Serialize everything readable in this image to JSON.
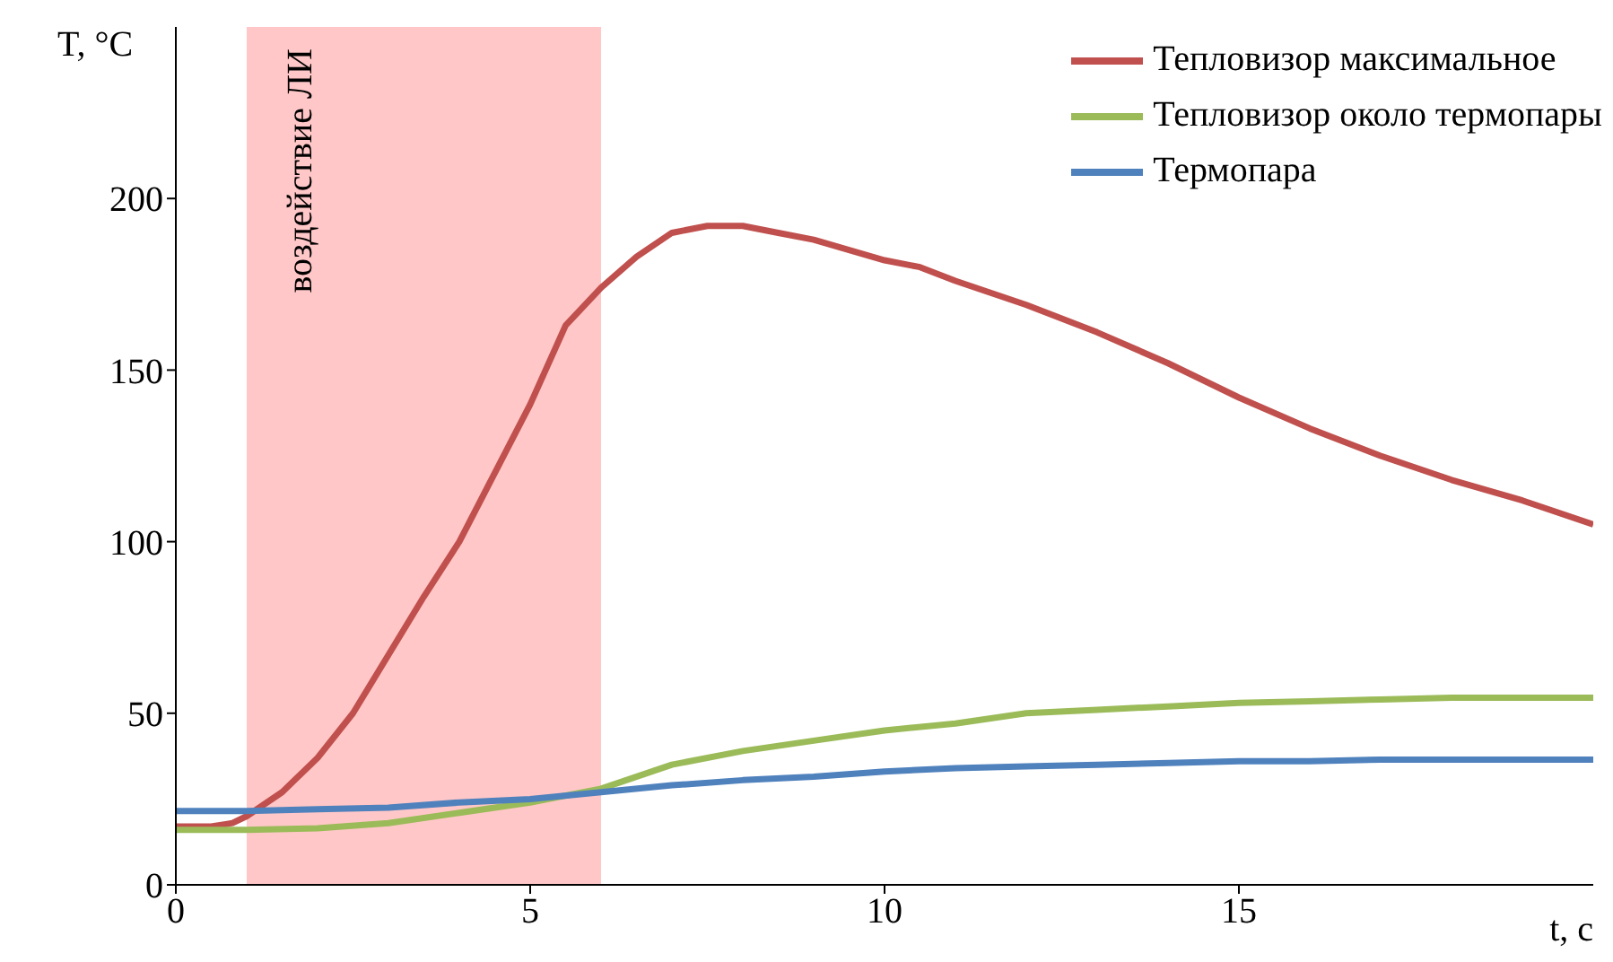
{
  "chart_data": {
    "type": "line",
    "xlabel": "t, с",
    "ylabel": "T, °C",
    "xlim": [
      0,
      20
    ],
    "xticks": [
      0,
      5,
      10,
      15
    ],
    "ylim": [
      0,
      250
    ],
    "yticks": [
      0,
      50,
      100,
      150,
      200
    ],
    "grid": false,
    "legend": "top right",
    "marker": "none",
    "line_style": "solid",
    "bands": [
      {
        "axis": "x",
        "from": 1,
        "to": 6,
        "label": "воздействие ЛИ",
        "color": "#ffc7c7"
      }
    ],
    "series": [
      {
        "name": "Тепловизор максимальное",
        "color": "#c0504d",
        "x": [
          0,
          0.5,
          0.8,
          1,
          1.5,
          2,
          2.5,
          3,
          3.5,
          4,
          4.5,
          5,
          5.5,
          6,
          6.5,
          7,
          7.5,
          8,
          8.5,
          9,
          9.5,
          10,
          10.5,
          11,
          12,
          13,
          14,
          15,
          16,
          17,
          18,
          19,
          20
        ],
        "values": [
          17,
          17,
          18,
          20,
          27,
          37,
          50,
          67,
          84,
          100,
          120,
          140,
          163,
          174,
          183,
          190,
          192,
          192,
          190,
          188,
          185,
          182,
          180,
          176,
          169,
          161,
          152,
          142,
          133,
          125,
          118,
          112,
          105
        ]
      },
      {
        "name": "Тепловизор около термопары",
        "color": "#9bbb59",
        "x": [
          0,
          1,
          2,
          3,
          4,
          5,
          6,
          7,
          8,
          9,
          10,
          11,
          12,
          13,
          14,
          15,
          16,
          17,
          18,
          20
        ],
        "values": [
          16,
          16,
          16.5,
          18,
          21,
          24,
          28,
          35,
          39,
          42,
          45,
          47,
          50,
          51,
          52,
          53,
          53.5,
          54,
          54.5,
          54.5
        ]
      },
      {
        "name": "Термопара",
        "color": "#4f81bd",
        "x": [
          0,
          1,
          2,
          3,
          4,
          5,
          6,
          7,
          8,
          9,
          10,
          11,
          12,
          13,
          14,
          15,
          16,
          17,
          20
        ],
        "values": [
          21.5,
          21.5,
          22,
          22.5,
          24,
          25,
          27,
          29,
          30.5,
          31.5,
          33,
          34,
          34.5,
          35,
          35.5,
          36,
          36,
          36.5,
          36.5
        ]
      }
    ]
  }
}
